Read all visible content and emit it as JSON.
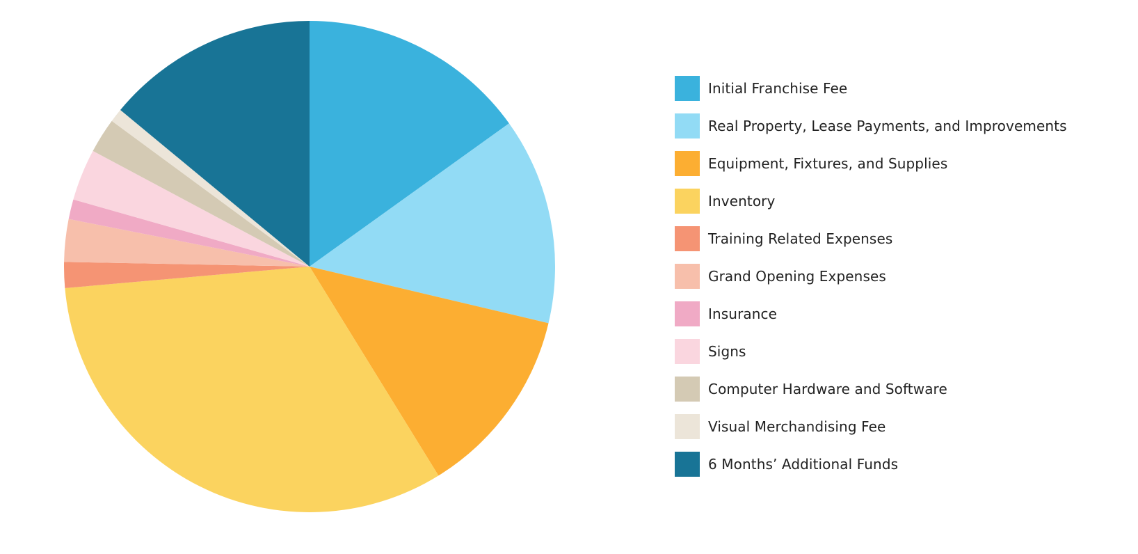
{
  "chart_data": {
    "type": "pie",
    "title": "",
    "categories": [
      "Initial Franchise Fee",
      "Real Property, Lease Payments, and Improvements",
      "Equipment, Fixtures, and Supplies",
      "Inventory",
      "Training Related Expenses",
      "Grand Opening Expenses",
      "Insurance",
      "Signs",
      "Computer Hardware and Software",
      "Visual Merchandising Fee",
      "6 Months’ Additional Funds"
    ],
    "values": [
      15.1,
      13.6,
      12.5,
      32.4,
      1.7,
      2.8,
      1.3,
      3.4,
      2.3,
      0.9,
      14.0
    ],
    "unit": "%",
    "start_angle_deg": 0,
    "direction": "clockwise",
    "legend_position": "right",
    "colors": [
      "#3ab2dd",
      "#92dbf5",
      "#fcae32",
      "#fbd35f",
      "#f59474",
      "#f7bfab",
      "#f0aac5",
      "#fad6df",
      "#d4cab4",
      "#ece5d9",
      "#187496"
    ]
  }
}
